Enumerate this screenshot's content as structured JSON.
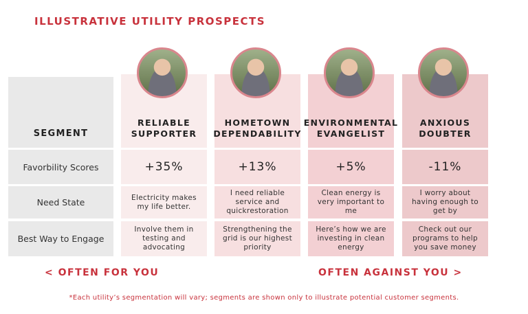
{
  "header": {
    "title": "ILLUSTRATIVE UTILITY PROSPECTS"
  },
  "table": {
    "corner": "SEGMENT",
    "row_headers": [
      "Favorbility Scores",
      "Need State",
      "Best Way to Engage"
    ],
    "columns": [
      {
        "name": "RELIABLE SUPPORTER",
        "favorability": "+35%",
        "need_state": "Electricity makes my life better.",
        "engage": "Involve them in testing and advocating"
      },
      {
        "name": "HOMETOWN DEPENDABILITY",
        "favorability": "+13%",
        "need_state": "I need reliable service and quickrestoration",
        "engage": "Strengthening the grid is our highest priority"
      },
      {
        "name": "ENVIRONMENTAL EVANGELIST",
        "favorability": "+5%",
        "need_state": "Clean energy is very important to me",
        "engage": "Here’s how we are investing in clean energy"
      },
      {
        "name": "ANXIOUS DOUBTER",
        "favorability": "-11%",
        "need_state": "I worry about having enough to get by",
        "engage": "Check out our programs to help you save money"
      }
    ]
  },
  "footer": {
    "left": "< OFTEN FOR YOU",
    "right": "OFTEN AGAINST YOU >",
    "note": "*Each utility’s segmentation will vary; segments are shown only to illustrate potential customer segments."
  }
}
